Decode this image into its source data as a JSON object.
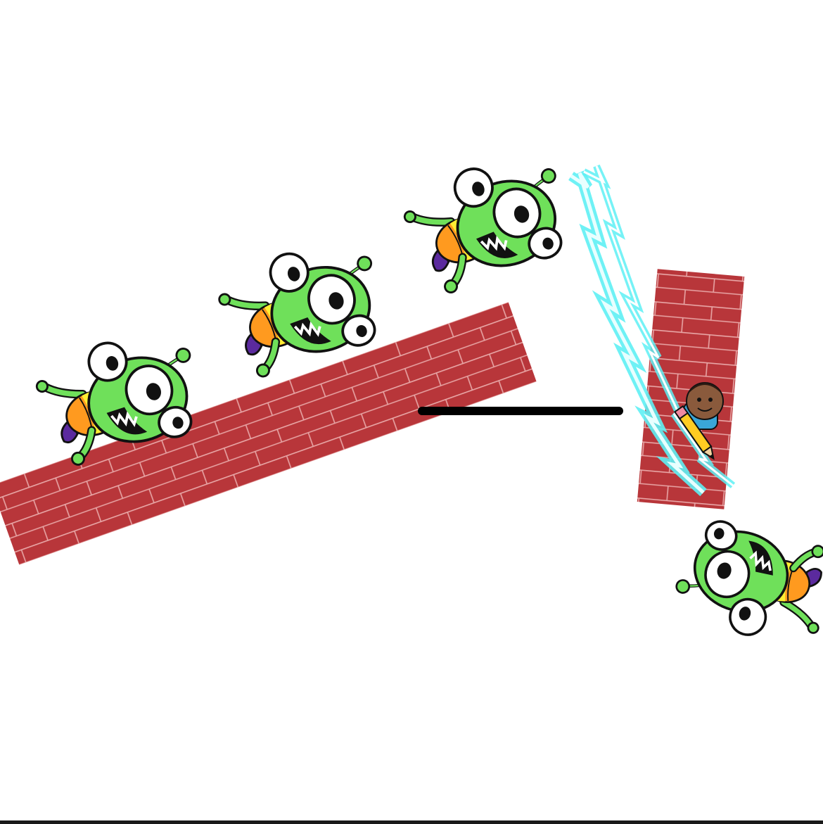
{
  "scene": {
    "background_color": "#ffffff",
    "brick_color": "#b8363a",
    "mortar_color": "#e8a6a6",
    "alien_color": "#6fe05a",
    "alien_outline": "#111111",
    "bolt_color": "#5ef0f4",
    "line_color": "#000000",
    "aliens": [
      "green-alien",
      "green-alien",
      "green-alien",
      "green-alien"
    ],
    "icons": [
      "lightning-bolt-icon",
      "player-avatar-icon",
      "pencil-icon"
    ]
  }
}
